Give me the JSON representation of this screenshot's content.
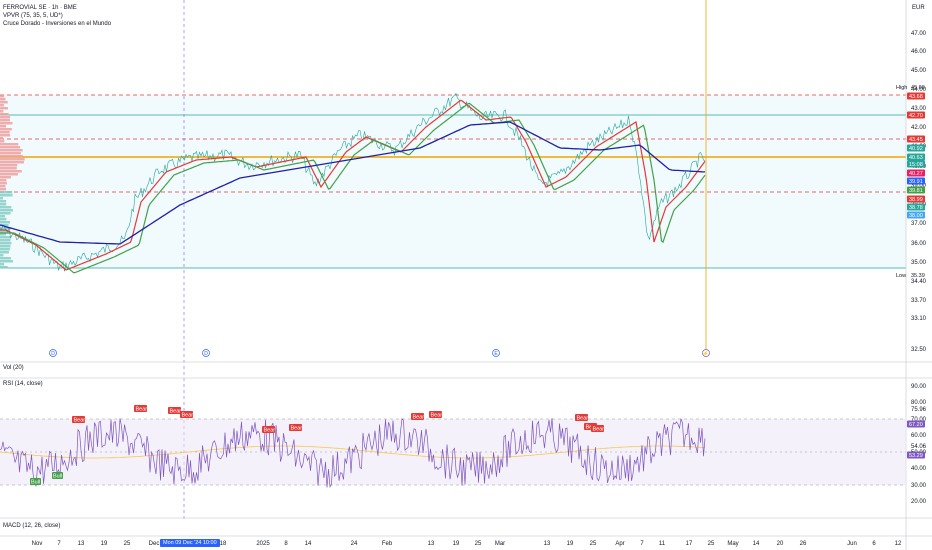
{
  "legend": {
    "title": "FERROVIAL SE · 1h · BME",
    "indicator1": "VPVR (75, 35, 5, UD*)",
    "indicator2": "Cruce Dorado - Inversiones en el Mundo"
  },
  "currency": "EUR",
  "price_axis": [
    "47.00",
    "46.00",
    "45.00",
    "44.00",
    "43.00",
    "42.00",
    "41.00",
    "40.00",
    "39.00",
    "38.00",
    "37.00",
    "36.00",
    "35.00",
    "34.40",
    "33.70",
    "33.10",
    "32.50"
  ],
  "price_tags": [
    {
      "text": "45.66",
      "color": "#131722",
      "label": "High"
    },
    {
      "text": "43.68",
      "color": "#e53935"
    },
    {
      "text": "42.70",
      "color": "#e53935"
    },
    {
      "text": "43.45",
      "color": "#e53935"
    },
    {
      "text": "40.92",
      "color": "#26a69a"
    },
    {
      "text": "40.63",
      "color": "#26a69a"
    },
    {
      "text": "15:08",
      "color": "#26a69a"
    },
    {
      "text": "40.27",
      "color": "#e91e63"
    },
    {
      "text": "39.91",
      "color": "#2962ff"
    },
    {
      "text": "39.81",
      "color": "#43a047"
    },
    {
      "text": "38.99",
      "color": "#e53935"
    },
    {
      "text": "38.78",
      "color": "#26a69a"
    },
    {
      "text": "38.00",
      "color": "#42a5f5"
    },
    {
      "text": "35.39",
      "color": "#131722",
      "label": "Low"
    }
  ],
  "markers": [
    "D",
    "D",
    "E",
    "⚡"
  ],
  "volume_label": "Vol (20)",
  "rsi": {
    "label": "RSI (14, close)",
    "axis": [
      "90.00",
      "80.00",
      "75.96",
      "70.00",
      "67.20",
      "60.00",
      "54.06",
      "50.00",
      "53.29",
      "40.00",
      "30.00",
      "20.00"
    ],
    "tag_value": "67.20",
    "tag_value2": "53.29",
    "bear_label": "Bear",
    "bull_label": "Bull"
  },
  "macd_label": "MACD (12, 26, close)",
  "time_axis": [
    "Nov",
    "7",
    "13",
    "19",
    "25",
    "Dec",
    "18",
    "2025",
    "8",
    "14",
    "24",
    "Feb",
    "13",
    "19",
    "25",
    "Mar",
    "13",
    "19",
    "25",
    "Apr",
    "7",
    "11",
    "17",
    "25",
    "May",
    "14",
    "20",
    "26",
    "Jun",
    "6",
    "12"
  ],
  "highlight_date": "Mon 09 Dec '24  10:00",
  "colors": {
    "green_ma": "#43a047",
    "red_ma": "#e53935",
    "blue_ma": "#1e22aa",
    "price": "#26a69a",
    "rsi": "#7e57c2",
    "rsi_ma": "#f9c74f",
    "orange": "#f0a500"
  }
}
